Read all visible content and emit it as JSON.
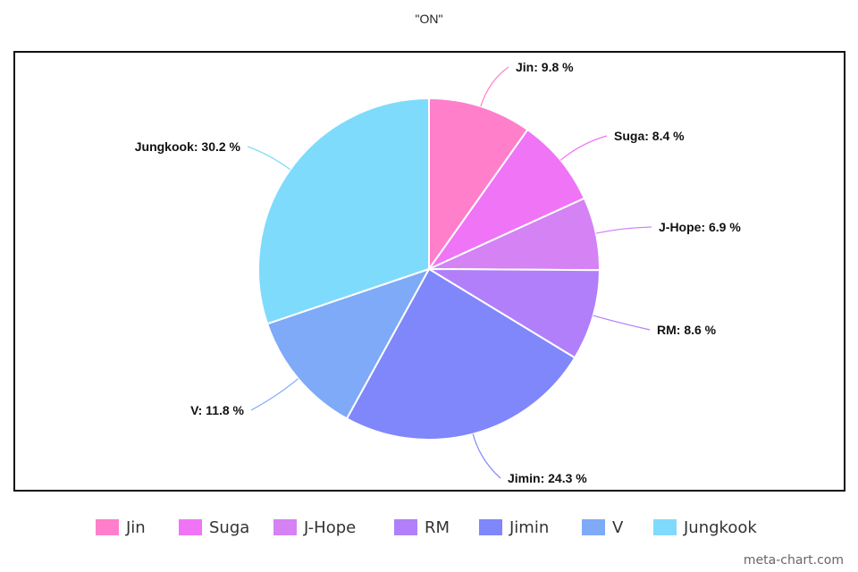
{
  "chart_data": {
    "type": "pie",
    "title": "\"ON\"",
    "categories": [
      "Jin",
      "Suga",
      "J-Hope",
      "RM",
      "Jimin",
      "V",
      "Jungkook"
    ],
    "values": [
      9.8,
      8.4,
      6.9,
      8.6,
      24.3,
      11.8,
      30.2
    ],
    "unit": "%",
    "colors": [
      "#ff7fcb",
      "#f074f6",
      "#d582f5",
      "#b17ff9",
      "#7f87fb",
      "#7eaaf8",
      "#7fdbfb"
    ],
    "data_labels": [
      "Jin: 9.8 %",
      "Suga: 8.4 %",
      "J-Hope: 6.9 %",
      "RM: 8.6 %",
      "Jimin: 24.3 %",
      "V: 11.8 %",
      "Jungkook: 30.2 %"
    ],
    "legend_position": "bottom",
    "start_angle": "top, clockwise"
  },
  "watermark": "meta-chart.com"
}
